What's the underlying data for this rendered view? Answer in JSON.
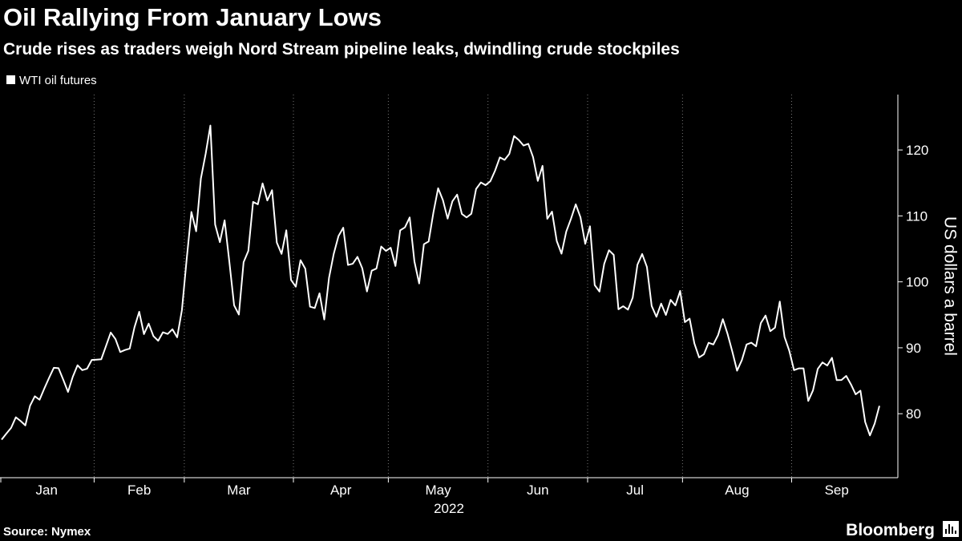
{
  "chart_data": {
    "type": "line",
    "title": "Oil Rallying From January Lows",
    "subtitle": "Crude rises as traders weigh Nord Stream pipeline leaks, dwindling crude stockpiles",
    "x_label": "2022",
    "y_label": "US dollars a barrel",
    "source": "Source: Nymex",
    "logo": "Bloomberg",
    "grid": true,
    "categories": [
      "Jan",
      null,
      null,
      null,
      null,
      null,
      null,
      null,
      null,
      null,
      null,
      null,
      null,
      null,
      null,
      null,
      null,
      null,
      null,
      null,
      "Feb",
      null,
      null,
      null,
      null,
      null,
      null,
      null,
      null,
      null,
      null,
      null,
      null,
      null,
      null,
      null,
      null,
      null,
      null,
      "Mar",
      null,
      null,
      null,
      null,
      null,
      null,
      null,
      null,
      null,
      null,
      null,
      null,
      null,
      null,
      null,
      null,
      null,
      null,
      null,
      null,
      null,
      null,
      "Apr",
      null,
      null,
      null,
      null,
      null,
      null,
      null,
      null,
      null,
      null,
      null,
      null,
      null,
      null,
      null,
      null,
      null,
      null,
      null,
      "May",
      null,
      null,
      null,
      null,
      null,
      null,
      null,
      null,
      null,
      null,
      null,
      null,
      null,
      null,
      null,
      null,
      null,
      null,
      null,
      null,
      "Jun",
      null,
      null,
      null,
      null,
      null,
      null,
      null,
      null,
      null,
      null,
      null,
      null,
      null,
      null,
      null,
      null,
      null,
      null,
      null,
      null,
      "Jul",
      null,
      null,
      null,
      null,
      null,
      null,
      null,
      null,
      null,
      null,
      null,
      null,
      null,
      null,
      null,
      null,
      null,
      null,
      null,
      "Aug",
      null,
      null,
      null,
      null,
      null,
      null,
      null,
      null,
      null,
      null,
      null,
      null,
      null,
      null,
      null,
      null,
      null,
      null,
      null,
      null,
      null,
      null,
      "Sep",
      null,
      null,
      null,
      null,
      null,
      null,
      null,
      null,
      null,
      null,
      null,
      null,
      null,
      null,
      null,
      null,
      null,
      null
    ],
    "series": [
      {
        "name": "WTI oil futures",
        "color": "#ffffff",
        "values": [
          76.08,
          76.99,
          77.85,
          79.46,
          78.9,
          78.23,
          81.22,
          82.64,
          82.12,
          83.82,
          85.43,
          86.96,
          86.9,
          85.14,
          83.31,
          85.6,
          87.35,
          86.61,
          86.82,
          88.15,
          88.2,
          88.26,
          90.27,
          92.31,
          91.32,
          89.36,
          89.66,
          89.88,
          93.1,
          95.46,
          92.07,
          93.66,
          91.76,
          91.07,
          92.35,
          92.1,
          92.81,
          91.59,
          95.72,
          103.41,
          110.6,
          107.67,
          115.68,
          119.4,
          123.7,
          108.7,
          106.02,
          109.33,
          103.01,
          96.44,
          95.04,
          102.98,
          104.7,
          112.12,
          111.76,
          114.93,
          112.34,
          113.9,
          105.96,
          104.24,
          107.82,
          100.28,
          99.27,
          103.28,
          102.0,
          96.23,
          96.03,
          98.26,
          94.29,
          100.6,
          104.25,
          106.95,
          108.21,
          102.56,
          102.75,
          103.79,
          102.07,
          98.54,
          101.7,
          102.02,
          105.36,
          104.69,
          105.17,
          102.41,
          107.81,
          108.26,
          109.77,
          103.09,
          99.76,
          105.71,
          106.13,
          110.49,
          114.2,
          112.4,
          109.59,
          112.21,
          113.23,
          110.29,
          109.77,
          110.33,
          114.09,
          115.07,
          114.67,
          115.26,
          116.87,
          118.87,
          118.5,
          119.41,
          122.11,
          121.51,
          120.67,
          120.93,
          118.93,
          115.31,
          117.59,
          109.56,
          110.65,
          106.19,
          104.27,
          107.62,
          109.57,
          111.76,
          109.78,
          105.76,
          108.43,
          99.5,
          98.53,
          102.73,
          104.79,
          104.09,
          95.84,
          96.3,
          95.78,
          97.59,
          102.6,
          104.22,
          102.26,
          96.35,
          94.7,
          96.7,
          94.98,
          97.26,
          96.42,
          98.62,
          93.89,
          94.42,
          90.66,
          88.54,
          89.01,
          90.76,
          90.5,
          91.93,
          94.34,
          92.09,
          89.41,
          86.53,
          88.11,
          90.5,
          90.77,
          90.23,
          93.74,
          94.89,
          92.52,
          93.06,
          97.01,
          91.64,
          89.55,
          86.61,
          86.87,
          86.88,
          81.94,
          83.54,
          86.79,
          87.78,
          87.31,
          88.48,
          85.1,
          85.11,
          85.73,
          84.45,
          82.94,
          83.49,
          78.74,
          76.71,
          78.5,
          81.2
        ]
      }
    ],
    "ylim": [
      70.3,
      128.4
    ],
    "yticks": [
      80,
      90,
      100,
      110,
      120
    ]
  }
}
